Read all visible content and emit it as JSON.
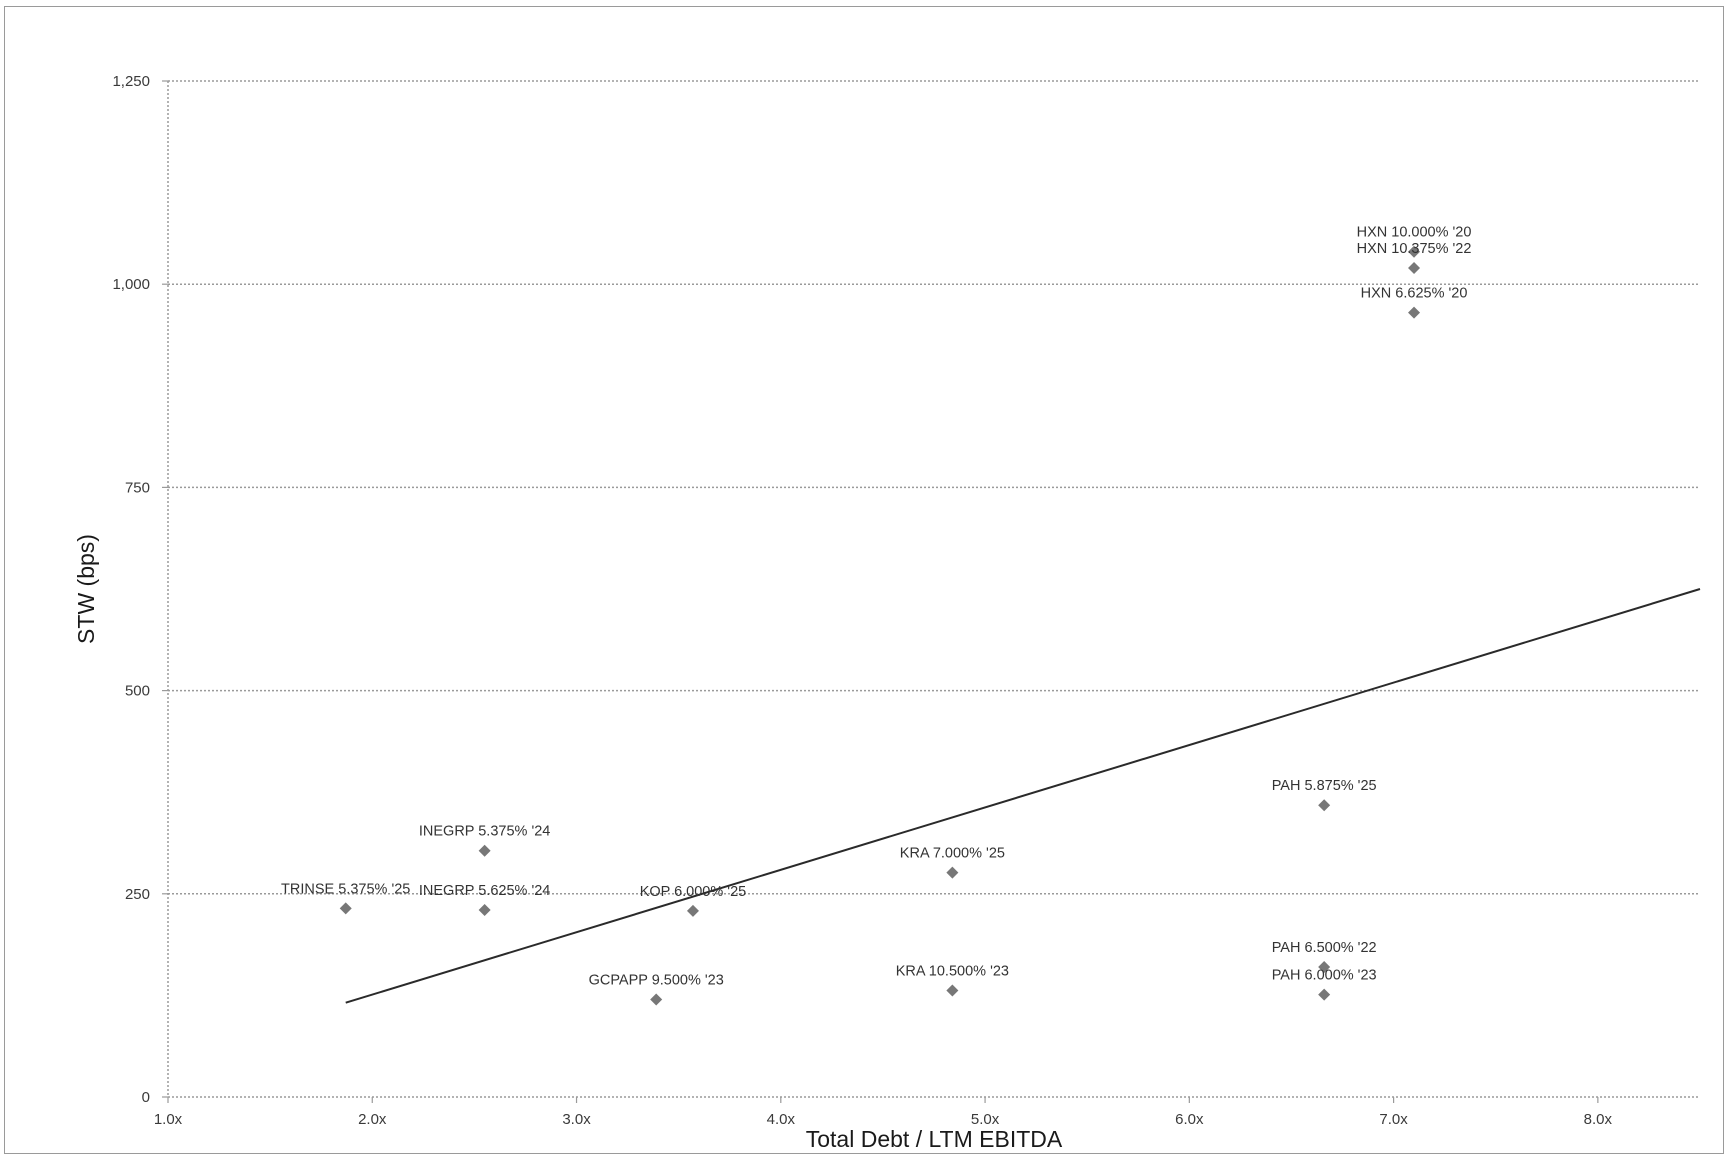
{
  "chart_data": {
    "type": "scatter",
    "title": "",
    "xlabel": "Total Debt / LTM EBITDA",
    "ylabel": "STW (bps)",
    "xlim": [
      1.0,
      8.5
    ],
    "ylim": [
      0,
      1250
    ],
    "x_ticks": [
      1.0,
      2.0,
      3.0,
      4.0,
      5.0,
      6.0,
      7.0,
      8.0
    ],
    "x_tick_labels": [
      "1.0x",
      "2.0x",
      "3.0x",
      "4.0x",
      "5.0x",
      "6.0x",
      "7.0x",
      "8.0x"
    ],
    "y_ticks": [
      0,
      250,
      500,
      750,
      1000,
      1250
    ],
    "y_tick_labels": [
      "0",
      "250",
      "500",
      "750",
      "1,000",
      "1,250"
    ],
    "grid": "horizontal dotted",
    "marker_color": "#777777",
    "points": [
      {
        "label": "TRINSE 5.375% '25",
        "x": 1.87,
        "y": 232
      },
      {
        "label": "INEGRP 5.375% '24",
        "x": 2.55,
        "y": 303
      },
      {
        "label": "INEGRP 5.625% '24",
        "x": 2.55,
        "y": 230
      },
      {
        "label": "KOP 6.000% '25",
        "x": 3.57,
        "y": 229
      },
      {
        "label": "GCPAPP 9.500% '23",
        "x": 3.39,
        "y": 120
      },
      {
        "label": "KRA 7.000% '25",
        "x": 4.84,
        "y": 276
      },
      {
        "label": "KRA 10.500% '23",
        "x": 4.84,
        "y": 131
      },
      {
        "label": "PAH 5.875% '25",
        "x": 6.66,
        "y": 359
      },
      {
        "label": "PAH 6.500% '22",
        "x": 6.66,
        "y": 160
      },
      {
        "label": "PAH 6.000% '23",
        "x": 6.66,
        "y": 126
      },
      {
        "label": "HXN 10.000% '20",
        "x": 7.1,
        "y": 1040
      },
      {
        "label": "HXN 10.375% '22",
        "x": 7.1,
        "y": 1020
      },
      {
        "label": "HXN 6.625% '20",
        "x": 7.1,
        "y": 965
      }
    ],
    "trendline": {
      "x": [
        1.87,
        8.5
      ],
      "y": [
        116,
        625
      ]
    }
  }
}
